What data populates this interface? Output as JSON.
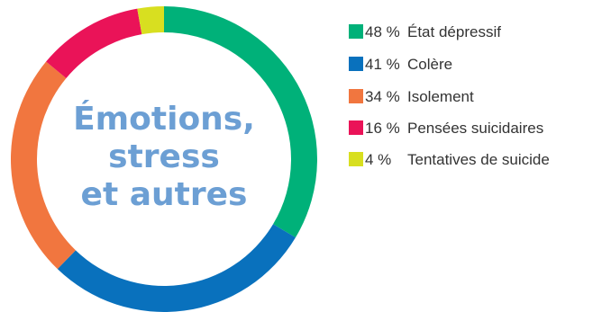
{
  "chart_data": {
    "type": "pie",
    "donut": true,
    "center_title": [
      "Émotions,",
      "stress",
      "et autres"
    ],
    "legend_position": "right",
    "series": [
      {
        "name": "État dépressif",
        "label": "48 %",
        "value": 48,
        "color": "#00b179"
      },
      {
        "name": "Colère",
        "label": "41 %",
        "value": 41,
        "color": "#0971bd"
      },
      {
        "name": "Isolement",
        "label": "34 %",
        "value": 34,
        "color": "#f1763f"
      },
      {
        "name": "Pensées suicidaires",
        "label": "16 %",
        "value": 16,
        "color": "#ea1358"
      },
      {
        "name": "Tentatives de suicide",
        "label": "4 %",
        "value": 4,
        "color": "#d8df20"
      }
    ]
  }
}
